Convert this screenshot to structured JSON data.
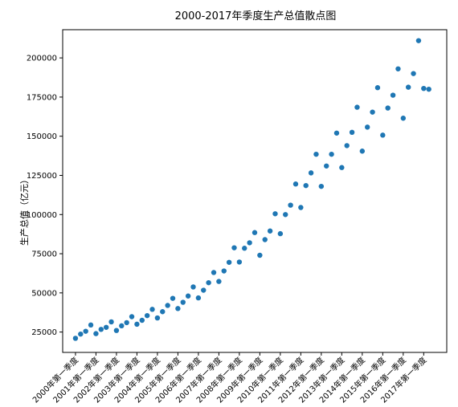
{
  "chart_data": {
    "type": "scatter",
    "title": "2000-2017年季度生产总值散点图",
    "xlabel": "",
    "ylabel": "生产总值（亿元）",
    "x_tick_labels": [
      "2000年第一季度",
      "2001年第一季度",
      "2002年第一季度",
      "2003年第一季度",
      "2004年第一季度",
      "2005年第一季度",
      "2006年第一季度",
      "2007年第一季度",
      "2008年第一季度",
      "2009年第一季度",
      "2010年第一季度",
      "2011年第一季度",
      "2012年第一季度",
      "2013年第一季度",
      "2014年第一季度",
      "2015年第一季度",
      "2016年第一季度",
      "2017年第一季度"
    ],
    "y_tick_labels": [
      "25000",
      "50000",
      "75000",
      "100000",
      "125000",
      "150000",
      "175000",
      "200000"
    ],
    "y_ticks": [
      25000,
      50000,
      75000,
      100000,
      125000,
      150000,
      175000,
      200000
    ],
    "ylim": [
      12000,
      218000
    ],
    "xlim": [
      -2.5,
      72.5
    ],
    "grid": false,
    "point_color": "#1f77b4",
    "series": [
      {
        "x": [
          0,
          1,
          2,
          3,
          4,
          5,
          6,
          7,
          8,
          9,
          10,
          11,
          12,
          13,
          14,
          15,
          16,
          17,
          18,
          19,
          20,
          21,
          22,
          23,
          24,
          25,
          26,
          27,
          28,
          29,
          30,
          31,
          32,
          33,
          34,
          35,
          36,
          37,
          38,
          39,
          40,
          41,
          42,
          43,
          44,
          45,
          46,
          47,
          48,
          49,
          50,
          51,
          52,
          53,
          54,
          55,
          56,
          57,
          58,
          59,
          60,
          61,
          62,
          63,
          64,
          65,
          66,
          67,
          68,
          69
        ],
        "y": [
          21000,
          23700,
          25500,
          29500,
          24000,
          26700,
          28000,
          31500,
          26000,
          29000,
          31000,
          34800,
          30000,
          32500,
          35500,
          39500,
          34000,
          38000,
          42000,
          46500,
          40000,
          44000,
          48000,
          53800,
          46800,
          51700,
          56500,
          63000,
          57300,
          64000,
          69500,
          78800,
          69700,
          78500,
          82000,
          88500,
          74000,
          84000,
          89500,
          100500,
          87800,
          100000,
          106000,
          119500,
          104500,
          118500,
          126600,
          138500,
          118000,
          131000,
          138500,
          152000,
          130000,
          144000,
          152500,
          168500,
          140500,
          155800,
          165400,
          181000,
          150700,
          168000,
          176200,
          193000,
          161500,
          181300,
          190000,
          211000,
          180500,
          180000
        ]
      }
    ]
  }
}
